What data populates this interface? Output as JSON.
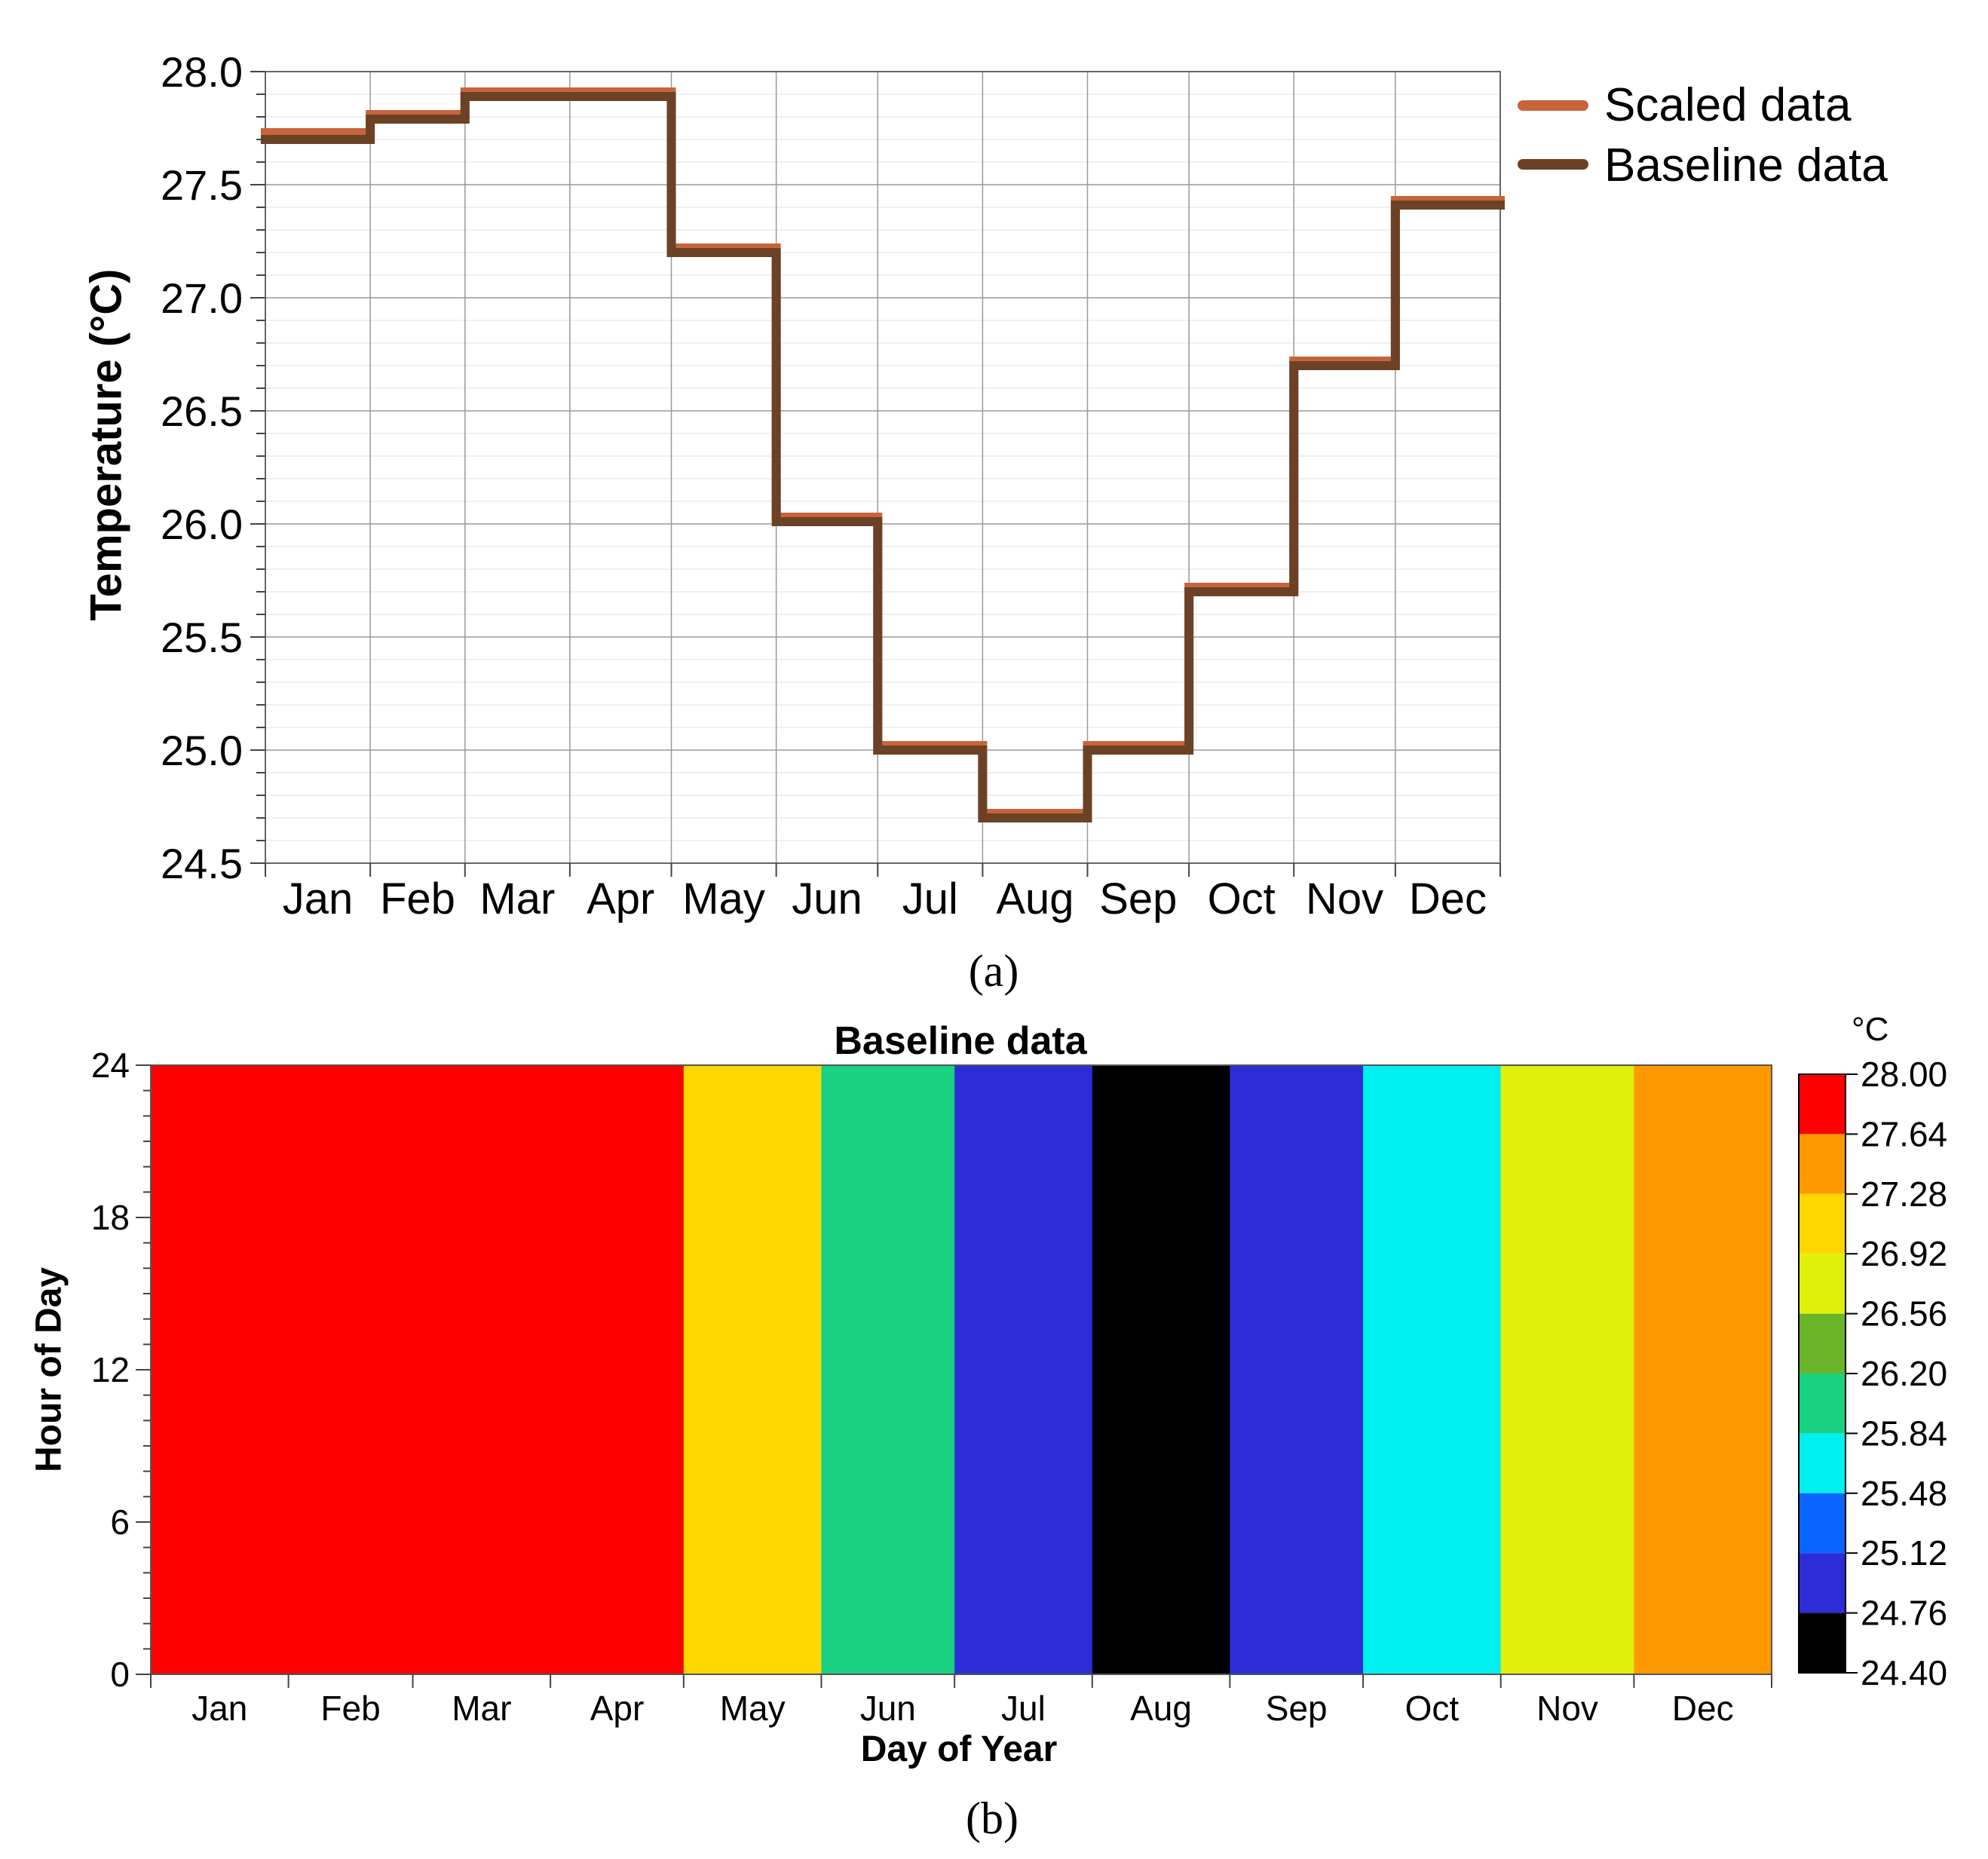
{
  "chart_data": [
    {
      "panel": "(a)",
      "type": "line",
      "ylabel": "Temperature (°C)",
      "xlabel": "",
      "ylim": [
        24.5,
        28.0
      ],
      "yticks": [
        "28.0",
        "27.5",
        "27.0",
        "26.5",
        "26.0",
        "25.5",
        "25.0",
        "24.5"
      ],
      "categories": [
        "Jan",
        "Feb",
        "Mar",
        "Apr",
        "May",
        "Jun",
        "Jul",
        "Aug",
        "Sep",
        "Oct",
        "Nov",
        "Dec"
      ],
      "month_days": [
        31,
        28,
        31,
        30,
        31,
        30,
        31,
        31,
        30,
        31,
        30,
        31
      ],
      "grid": true,
      "legend_position": "right",
      "series": [
        {
          "name": "Scaled data",
          "color": "#C8643C",
          "values": [
            27.73,
            27.81,
            27.91,
            27.91,
            27.22,
            26.03,
            25.02,
            24.72,
            25.02,
            25.72,
            26.72,
            27.43
          ]
        },
        {
          "name": "Baseline data",
          "color": "#6B4226",
          "values": [
            27.7,
            27.79,
            27.89,
            27.89,
            27.2,
            26.01,
            25.0,
            24.7,
            25.0,
            25.7,
            26.7,
            27.41
          ]
        }
      ]
    },
    {
      "panel": "(b)",
      "type": "heatmap",
      "title": "Baseline data",
      "xlabel": "Day of Year",
      "ylabel": "Hour of Day",
      "ylim": [
        0,
        24
      ],
      "yticks": [
        "24",
        "18",
        "12",
        "6",
        "0"
      ],
      "categories": [
        "Jan",
        "Feb",
        "Mar",
        "Apr",
        "May",
        "Jun",
        "Jul",
        "Aug",
        "Sep",
        "Oct",
        "Nov",
        "Dec"
      ],
      "values": [
        27.7,
        27.79,
        27.89,
        27.89,
        27.2,
        26.01,
        25.0,
        24.7,
        25.0,
        25.7,
        26.7,
        27.41
      ],
      "colorbar": {
        "unit": "°C",
        "levels": [
          "28.00",
          "27.64",
          "27.28",
          "26.92",
          "26.56",
          "26.20",
          "25.84",
          "25.48",
          "25.12",
          "24.76",
          "24.40"
        ],
        "colors": [
          "#FF0000",
          "#FF9900",
          "#FFD700",
          "#E1F00A",
          "#6AB42A",
          "#18D282",
          "#00F0F0",
          "#0A64FF",
          "#2D2DD7",
          "#000000"
        ]
      }
    }
  ]
}
